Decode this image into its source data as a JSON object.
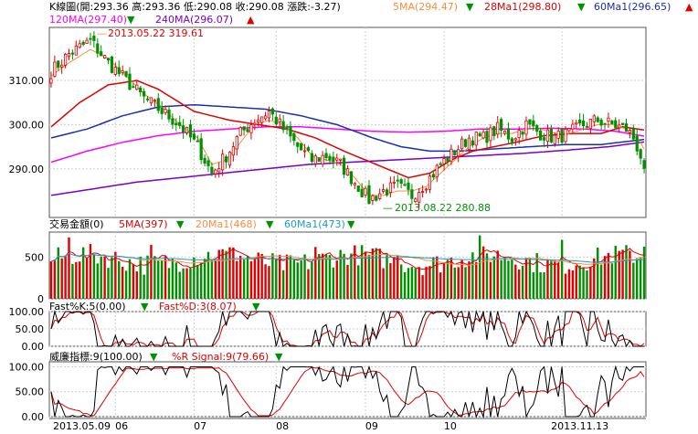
{
  "colors": {
    "up": "#e00000",
    "down": "#009000",
    "ma5": "#ff8c3a",
    "ma28": "#e00000",
    "ma60": "#1a2fb0",
    "ma120": "#ff00ff",
    "ma240": "#7a00c8",
    "grid": "#cfcfcf",
    "axis": "#555555",
    "text": "#000000",
    "kline": "#000000",
    "dline": "#e00000"
  },
  "header": {
    "kline_label": "K線圖(開:293.36 高:293.36 低:290.08 收:290.08 漲跌:-3.27)",
    "ma5": "5MA(294.47)",
    "ma28": "28Ma1(298.80)",
    "ma60": "60Ma1(296.65)",
    "ma120": "120MA(297.40)",
    "ma240": "240MA(296.07)",
    "down_arrow": "▼",
    "up_arrow": "▲"
  },
  "volume_header": {
    "label": "交易金額(0)",
    "ma5": "5MA(397)",
    "ma20": "20Ma1(468)",
    "ma60": "60Ma1(473)"
  },
  "kd_header": {
    "k": "Fast%K:5(0.00)",
    "d": "Fast%D:3(8.07)"
  },
  "wr_header": {
    "wr": "威廉指標:9(100.00)",
    "signal": "%R Signal:9(79.66)"
  },
  "annotations": {
    "high": "2013.05.22  319.61",
    "low": "2013.08.22  280.88",
    "high_mark": "—",
    "low_mark": "—"
  },
  "chart_data": {
    "type": "candlestick",
    "xaxis": {
      "labels": [
        "2013.05.09",
        "06",
        "07",
        "08",
        "09",
        "10",
        "2013.11.13"
      ]
    },
    "price": {
      "yticks": [
        "310.00",
        "300.00",
        "290.00"
      ],
      "tick_values": [
        310,
        300,
        290
      ],
      "ylim": [
        279,
        322
      ],
      "anchors": [
        [
          0,
          312
        ],
        [
          5,
          316
        ],
        [
          11,
          319
        ],
        [
          16,
          314
        ],
        [
          21,
          310
        ],
        [
          26,
          306
        ],
        [
          31,
          303
        ],
        [
          36,
          300
        ],
        [
          41,
          295
        ],
        [
          45,
          289
        ],
        [
          49,
          293
        ],
        [
          53,
          298
        ],
        [
          57,
          301
        ],
        [
          61,
          303
        ],
        [
          65,
          299
        ],
        [
          69,
          295
        ],
        [
          73,
          292
        ],
        [
          77,
          293
        ],
        [
          81,
          291
        ],
        [
          85,
          287
        ],
        [
          89,
          283
        ],
        [
          93,
          285
        ],
        [
          97,
          286
        ],
        [
          101,
          284
        ],
        [
          105,
          287
        ],
        [
          109,
          291
        ],
        [
          113,
          294
        ],
        [
          117,
          297
        ],
        [
          121,
          297
        ],
        [
          125,
          299
        ],
        [
          129,
          297
        ],
        [
          133,
          300
        ],
        [
          137,
          298
        ],
        [
          141,
          297
        ],
        [
          145,
          298
        ],
        [
          149,
          300
        ],
        [
          153,
          301
        ],
        [
          157,
          300
        ],
        [
          161,
          299
        ],
        [
          163,
          297
        ],
        [
          165,
          293
        ],
        [
          166,
          290.08
        ]
      ],
      "ma5": {
        "anchors": [
          [
            0,
            311
          ],
          [
            5,
            314
          ],
          [
            11,
            317
          ],
          [
            16,
            315
          ],
          [
            21,
            311
          ],
          [
            26,
            307
          ],
          [
            31,
            304
          ],
          [
            36,
            300
          ],
          [
            41,
            297
          ],
          [
            45,
            291
          ],
          [
            49,
            292
          ],
          [
            53,
            296
          ],
          [
            57,
            300
          ],
          [
            61,
            301
          ],
          [
            65,
            300
          ],
          [
            69,
            297
          ],
          [
            73,
            293
          ],
          [
            77,
            292
          ],
          [
            81,
            291
          ],
          [
            85,
            288
          ],
          [
            89,
            284
          ],
          [
            93,
            284
          ],
          [
            97,
            285
          ],
          [
            101,
            285
          ],
          [
            105,
            286
          ],
          [
            109,
            289
          ],
          [
            113,
            292
          ],
          [
            117,
            295
          ],
          [
            121,
            297
          ],
          [
            125,
            298
          ],
          [
            129,
            298
          ],
          [
            133,
            299
          ],
          [
            137,
            299
          ],
          [
            141,
            298
          ],
          [
            145,
            298
          ],
          [
            149,
            299
          ],
          [
            153,
            300
          ],
          [
            157,
            300
          ],
          [
            161,
            299
          ],
          [
            165,
            296
          ],
          [
            166,
            294.47
          ]
        ]
      },
      "ma28": {
        "anchors": [
          [
            0,
            299.5
          ],
          [
            8,
            305
          ],
          [
            16,
            309
          ],
          [
            24,
            310
          ],
          [
            30,
            308
          ],
          [
            40,
            303
          ],
          [
            50,
            301
          ],
          [
            58,
            300
          ],
          [
            66,
            299
          ],
          [
            74,
            297
          ],
          [
            82,
            294
          ],
          [
            88,
            292
          ],
          [
            94,
            290
          ],
          [
            100,
            288
          ],
          [
            106,
            289
          ],
          [
            112,
            292
          ],
          [
            118,
            294
          ],
          [
            124,
            295
          ],
          [
            130,
            296
          ],
          [
            138,
            297.5
          ],
          [
            146,
            298
          ],
          [
            154,
            298
          ],
          [
            160,
            299.5
          ],
          [
            166,
            298.8
          ]
        ]
      },
      "ma60": {
        "anchors": [
          [
            0,
            297
          ],
          [
            10,
            299
          ],
          [
            20,
            302
          ],
          [
            30,
            304
          ],
          [
            40,
            304.5
          ],
          [
            50,
            304
          ],
          [
            60,
            303.5
          ],
          [
            70,
            302
          ],
          [
            80,
            300
          ],
          [
            90,
            297
          ],
          [
            98,
            295
          ],
          [
            106,
            294
          ],
          [
            114,
            294
          ],
          [
            124,
            294.5
          ],
          [
            134,
            295
          ],
          [
            144,
            295.5
          ],
          [
            154,
            295.5
          ],
          [
            166,
            296.65
          ]
        ]
      },
      "ma120": {
        "anchors": [
          [
            0,
            291.5
          ],
          [
            10,
            294
          ],
          [
            20,
            296
          ],
          [
            30,
            297.5
          ],
          [
            40,
            298.5
          ],
          [
            50,
            299
          ],
          [
            60,
            299.5
          ],
          [
            70,
            299.5
          ],
          [
            80,
            299
          ],
          [
            90,
            298.5
          ],
          [
            100,
            298.3
          ],
          [
            110,
            298.5
          ],
          [
            120,
            299
          ],
          [
            130,
            299
          ],
          [
            140,
            299.2
          ],
          [
            150,
            299
          ],
          [
            158,
            298.5
          ],
          [
            166,
            297.4
          ]
        ]
      },
      "ma240": {
        "anchors": [
          [
            0,
            284
          ],
          [
            12,
            285.5
          ],
          [
            24,
            287
          ],
          [
            36,
            288
          ],
          [
            48,
            289
          ],
          [
            60,
            290
          ],
          [
            72,
            291
          ],
          [
            84,
            291.5
          ],
          [
            96,
            292
          ],
          [
            108,
            292.5
          ],
          [
            120,
            293
          ],
          [
            132,
            293.5
          ],
          [
            144,
            294.2
          ],
          [
            156,
            295
          ],
          [
            166,
            296.07
          ]
        ]
      }
    },
    "volume": {
      "yticks": [
        "500",
        "0"
      ],
      "tick_values": [
        500,
        0
      ],
      "ylim": [
        0,
        800
      ],
      "ma5": 397,
      "ma20": 468,
      "ma60": 473
    },
    "kd": {
      "yticks": [
        "100.00",
        "50.00",
        "0.00"
      ],
      "tick_values": [
        100,
        50,
        0
      ],
      "ylim": [
        0,
        100
      ],
      "k_last": 0,
      "d_last": 8.07
    },
    "williams": {
      "yticks": [
        "100.00",
        "50.00",
        "0.00"
      ],
      "tick_values": [
        100,
        50,
        0
      ],
      "ylim": [
        0,
        110
      ],
      "wr_last": 100,
      "signal_last": 79.66
    }
  }
}
